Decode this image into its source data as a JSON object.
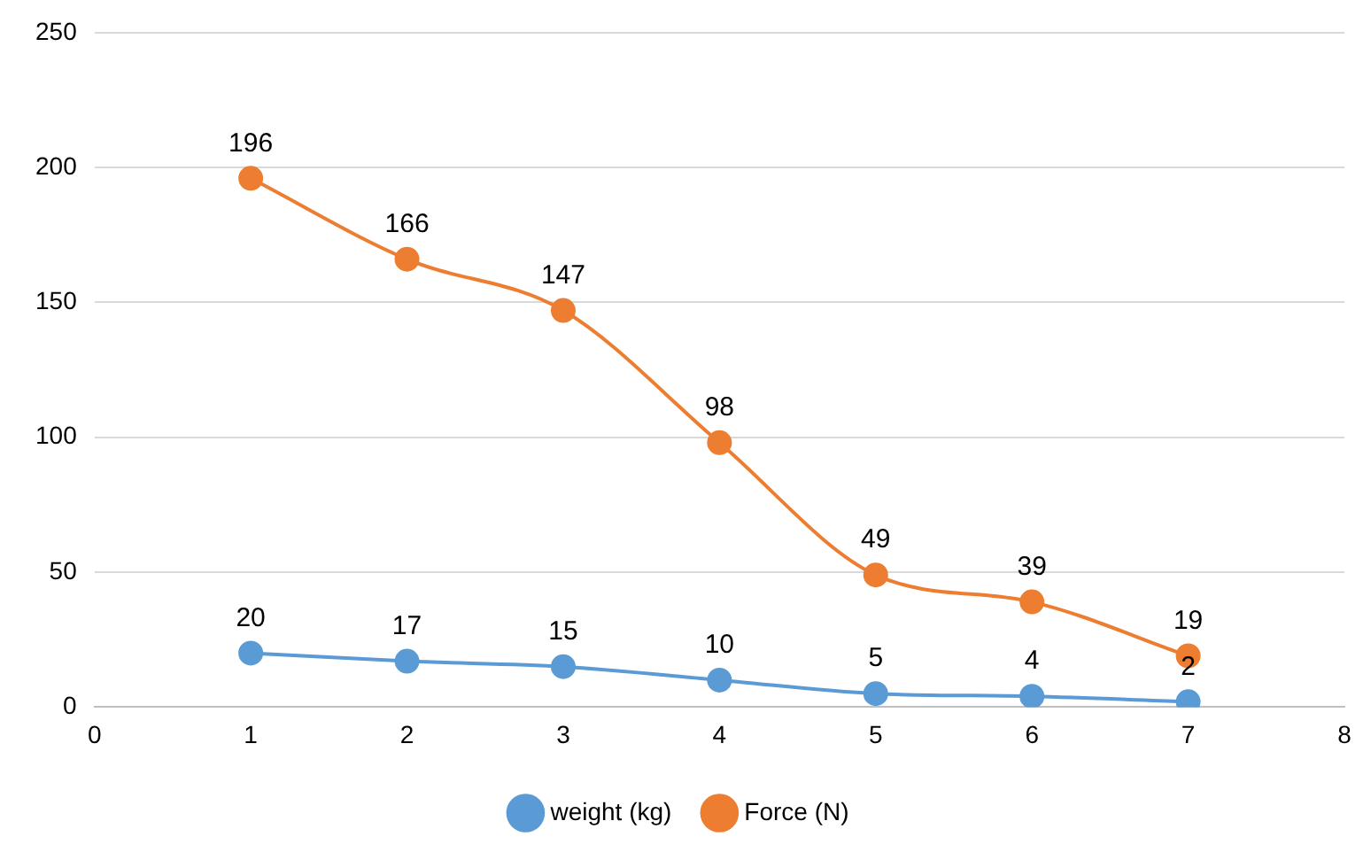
{
  "chart_data": {
    "type": "line",
    "x": [
      1,
      2,
      3,
      4,
      5,
      6,
      7
    ],
    "series": [
      {
        "name": "weight (kg)",
        "color": "#5b9bd5",
        "values": [
          20,
          17,
          15,
          10,
          5,
          4,
          2
        ]
      },
      {
        "name": "Force (N)",
        "color": "#ed7d31",
        "values": [
          196,
          166,
          147,
          98,
          49,
          39,
          19
        ]
      }
    ],
    "xlim": [
      0,
      8
    ],
    "xticks": [
      0,
      1,
      2,
      3,
      4,
      5,
      6,
      7,
      8
    ],
    "ylim": [
      0,
      250
    ],
    "yticks": [
      0,
      50,
      100,
      150,
      200,
      250
    ],
    "grid": "y",
    "legend": "bottom",
    "marker": "circle",
    "line_style": "solid",
    "data_labels": true
  }
}
